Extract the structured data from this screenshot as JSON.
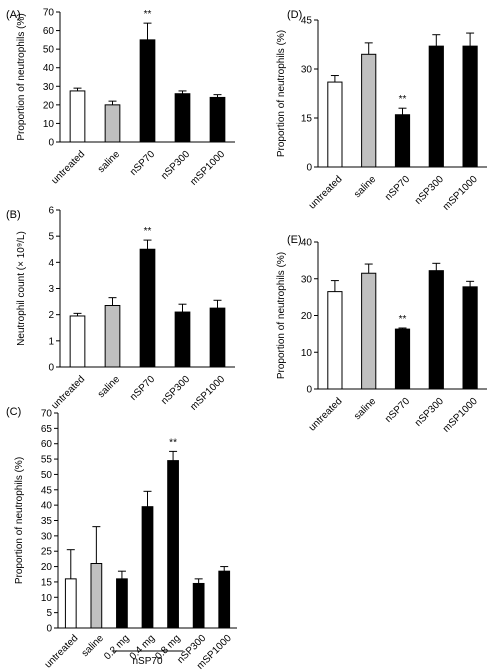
{
  "chart_data": [
    {
      "panel": "(A)",
      "type": "bar",
      "ylabel": "Proportion of neutrophils (%)",
      "ylim": [
        0,
        70
      ],
      "yticks": [
        0,
        10,
        20,
        30,
        40,
        50,
        60,
        70
      ],
      "categories": [
        "untreated",
        "saline",
        "nSP70",
        "nSP300",
        "mSP1000"
      ],
      "values": [
        27.5,
        20,
        55,
        26,
        24
      ],
      "errors": [
        1.5,
        2,
        9,
        1.5,
        1.5
      ],
      "fills": [
        "#ffffff",
        "#c0c0c0",
        "#000000",
        "#000000",
        "#000000"
      ],
      "significance": [
        "",
        "",
        "**",
        "",
        ""
      ]
    },
    {
      "panel": "(B)",
      "type": "bar",
      "ylabel": "Neutrophil count (× 10⁹/L)",
      "ylim": [
        0,
        6
      ],
      "yticks": [
        0,
        1,
        2,
        3,
        4,
        5,
        6
      ],
      "categories": [
        "untreated",
        "saline",
        "nSP70",
        "nSP300",
        "mSP1000"
      ],
      "values": [
        1.95,
        2.35,
        4.5,
        2.1,
        2.25
      ],
      "errors": [
        0.1,
        0.3,
        0.35,
        0.3,
        0.3
      ],
      "fills": [
        "#ffffff",
        "#c0c0c0",
        "#000000",
        "#000000",
        "#000000"
      ],
      "significance": [
        "",
        "",
        "**",
        "",
        ""
      ]
    },
    {
      "panel": "(C)",
      "type": "bar",
      "ylabel": "Proportion of neutrophils (%)",
      "ylim": [
        0,
        70
      ],
      "yticks": [
        0,
        5,
        10,
        15,
        20,
        25,
        30,
        35,
        40,
        45,
        50,
        55,
        60,
        65,
        70
      ],
      "categories": [
        "untreated",
        "saline",
        "0.2 mg",
        "0.4 mg",
        "0.8 mg",
        "nSP300",
        "mSP1000"
      ],
      "values": [
        16,
        21,
        16,
        39.5,
        54.5,
        14.5,
        18.5
      ],
      "errors": [
        9.5,
        12,
        2.5,
        5,
        3,
        1.5,
        1.5
      ],
      "fills": [
        "#ffffff",
        "#c0c0c0",
        "#000000",
        "#000000",
        "#000000",
        "#000000",
        "#000000"
      ],
      "significance": [
        "",
        "",
        "",
        "",
        "**",
        "",
        ""
      ],
      "group_label": "nSP70"
    },
    {
      "panel": "(D)",
      "type": "bar",
      "ylabel": "Proportion of neutrophils (%)",
      "ylim": [
        0,
        45
      ],
      "yticks": [
        0,
        15,
        30,
        45
      ],
      "categories": [
        "untreated",
        "saline",
        "nSP70",
        "nSP300",
        "mSP1000"
      ],
      "values": [
        26,
        34.5,
        16,
        37,
        37
      ],
      "errors": [
        2,
        3.5,
        2,
        3.5,
        4
      ],
      "fills": [
        "#ffffff",
        "#c0c0c0",
        "#000000",
        "#000000",
        "#000000"
      ],
      "significance": [
        "",
        "",
        "**",
        "",
        ""
      ]
    },
    {
      "panel": "(E)",
      "type": "bar",
      "ylabel": "Proportion of neutrophils (%)",
      "ylim": [
        0,
        40
      ],
      "yticks": [
        0,
        10,
        20,
        30,
        40
      ],
      "categories": [
        "untreated",
        "saline",
        "nSP70",
        "nSP300",
        "mSP1000"
      ],
      "values": [
        26.5,
        31.5,
        16.3,
        32.2,
        27.8
      ],
      "errors": [
        3,
        2.5,
        0.3,
        2,
        1.5
      ],
      "fills": [
        "#ffffff",
        "#c0c0c0",
        "#000000",
        "#000000",
        "#000000"
      ],
      "significance": [
        "",
        "",
        "**",
        "",
        ""
      ]
    }
  ]
}
